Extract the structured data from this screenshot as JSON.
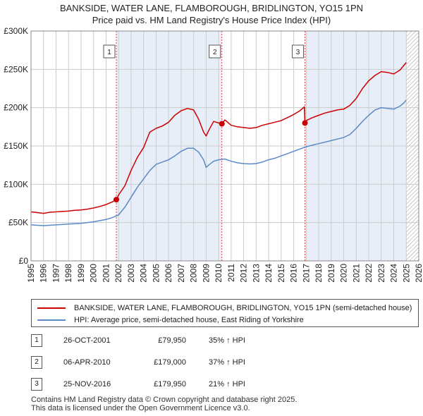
{
  "title_line1": "BANKSIDE, WATER LANE, FLAMBOROUGH, BRIDLINGTON, YO15 1PN",
  "title_line2": "Price paid vs. HM Land Registry's House Price Index (HPI)",
  "colors": {
    "property": "#cc0000",
    "hpi": "#5b8ac6",
    "shade": "#e8eef8",
    "grid": "#cccccc"
  },
  "chart_data": {
    "type": "line",
    "title": "Price paid vs. HM Land Registry's House Price Index (HPI)",
    "xlim": [
      1995,
      2026
    ],
    "ylim": [
      0,
      300000
    ],
    "x_ticks": [
      "1995",
      "1996",
      "1997",
      "1998",
      "1999",
      "2000",
      "2001",
      "2002",
      "2003",
      "2004",
      "2005",
      "2006",
      "2007",
      "2008",
      "2009",
      "2010",
      "2011",
      "2012",
      "2013",
      "2014",
      "2015",
      "2016",
      "2017",
      "2018",
      "2019",
      "2020",
      "2021",
      "2022",
      "2023",
      "2024",
      "2025",
      "2026"
    ],
    "y_ticks": [
      {
        "value": 0,
        "label": "£0"
      },
      {
        "value": 50000,
        "label": "£50K"
      },
      {
        "value": 100000,
        "label": "£100K"
      },
      {
        "value": 150000,
        "label": "£150K"
      },
      {
        "value": 200000,
        "label": "£200K"
      },
      {
        "value": 250000,
        "label": "£250K"
      },
      {
        "value": 300000,
        "label": "£300K"
      }
    ],
    "shaded_ranges": [
      [
        2001.82,
        2010.26
      ],
      [
        2016.9,
        2025.0
      ]
    ],
    "hatched_from": 2025.0,
    "series": [
      {
        "name": "BANKSIDE, WATER LANE, FLAMBOROUGH, BRIDLINGTON, YO15 1PN (semi-detached house)",
        "color": "#cc0000",
        "x": [
          1995.0,
          1995.5,
          1996.0,
          1996.5,
          1997.0,
          1997.5,
          1998.0,
          1998.5,
          1999.0,
          1999.5,
          2000.0,
          2000.5,
          2001.0,
          2001.5,
          2001.82,
          2002.0,
          2002.5,
          2003.0,
          2003.5,
          2004.0,
          2004.5,
          2005.0,
          2005.5,
          2006.0,
          2006.5,
          2007.0,
          2007.5,
          2008.0,
          2008.4,
          2008.8,
          2009.0,
          2009.2,
          2009.6,
          2010.0,
          2010.26,
          2010.5,
          2011.0,
          2011.5,
          2012.0,
          2012.5,
          2013.0,
          2013.5,
          2014.0,
          2014.5,
          2015.0,
          2015.5,
          2016.0,
          2016.5,
          2016.85,
          2016.9,
          2017.0,
          2017.5,
          2018.0,
          2018.5,
          2019.0,
          2019.5,
          2020.0,
          2020.5,
          2021.0,
          2021.5,
          2022.0,
          2022.5,
          2023.0,
          2023.5,
          2024.0,
          2024.5,
          2024.8,
          2025.0
        ],
        "values": [
          64000,
          63000,
          62000,
          63500,
          64000,
          64500,
          65000,
          66000,
          66500,
          67500,
          69000,
          71000,
          73500,
          77000,
          79950,
          86000,
          98000,
          118000,
          135000,
          148000,
          168000,
          173000,
          176000,
          181000,
          190000,
          196000,
          199000,
          197000,
          185000,
          168000,
          163000,
          170000,
          182000,
          180000,
          179000,
          184000,
          177000,
          175000,
          174000,
          173000,
          174000,
          177000,
          179000,
          181000,
          183000,
          187000,
          191000,
          196000,
          201000,
          179950,
          183000,
          187000,
          190000,
          193000,
          195000,
          197000,
          198000,
          203000,
          212000,
          225000,
          235000,
          242000,
          247000,
          246000,
          244000,
          249000,
          255000,
          259000
        ]
      },
      {
        "name": "HPI: Average price, semi-detached house, East Riding of Yorkshire",
        "color": "#5b8ac6",
        "x": [
          1995.0,
          1995.5,
          1996.0,
          1996.5,
          1997.0,
          1997.5,
          1998.0,
          1998.5,
          1999.0,
          1999.5,
          2000.0,
          2000.5,
          2001.0,
          2001.5,
          2002.0,
          2002.5,
          2003.0,
          2003.5,
          2004.0,
          2004.5,
          2005.0,
          2005.5,
          2006.0,
          2006.5,
          2007.0,
          2007.5,
          2008.0,
          2008.4,
          2008.8,
          2009.0,
          2009.2,
          2009.6,
          2010.0,
          2010.5,
          2011.0,
          2011.5,
          2012.0,
          2012.5,
          2013.0,
          2013.5,
          2014.0,
          2014.5,
          2015.0,
          2015.5,
          2016.0,
          2016.5,
          2017.0,
          2017.5,
          2018.0,
          2018.5,
          2019.0,
          2019.5,
          2020.0,
          2020.5,
          2021.0,
          2021.5,
          2022.0,
          2022.5,
          2023.0,
          2023.5,
          2024.0,
          2024.5,
          2024.8,
          2025.0
        ],
        "values": [
          47000,
          46500,
          46000,
          46500,
          47000,
          47500,
          48000,
          48500,
          49000,
          50000,
          51000,
          52500,
          54000,
          56500,
          60000,
          70000,
          83000,
          96000,
          107000,
          118000,
          126000,
          129000,
          132000,
          137000,
          143000,
          147000,
          147000,
          142000,
          132000,
          122000,
          125000,
          130000,
          132000,
          133000,
          130000,
          128000,
          127000,
          126500,
          127000,
          129000,
          132000,
          134000,
          137000,
          140000,
          143000,
          146000,
          149000,
          151000,
          153000,
          155000,
          157000,
          159000,
          161000,
          165000,
          173000,
          182000,
          190000,
          197000,
          200000,
          199000,
          198000,
          202000,
          206000,
          210000
        ]
      }
    ],
    "sales": [
      {
        "label": "1",
        "date": "26-OCT-2001",
        "x": 2001.82,
        "price": 79950,
        "price_text": "£79,950",
        "hpi_text": "35% ↑ HPI"
      },
      {
        "label": "2",
        "date": "06-APR-2010",
        "x": 2010.26,
        "price": 179000,
        "price_text": "£179,000",
        "hpi_text": "37% ↑ HPI"
      },
      {
        "label": "3",
        "date": "25-NOV-2016",
        "x": 2016.9,
        "price": 179950,
        "price_text": "£179,950",
        "hpi_text": "21% ↑ HPI"
      }
    ]
  },
  "legend": {
    "property": "BANKSIDE, WATER LANE, FLAMBOROUGH, BRIDLINGTON, YO15 1PN (semi-detached house)",
    "hpi": "HPI: Average price, semi-detached house, East Riding of Yorkshire"
  },
  "footer": {
    "line1": "Contains HM Land Registry data © Crown copyright and database right 2025.",
    "line2": "This data is licensed under the Open Government Licence v3.0."
  }
}
